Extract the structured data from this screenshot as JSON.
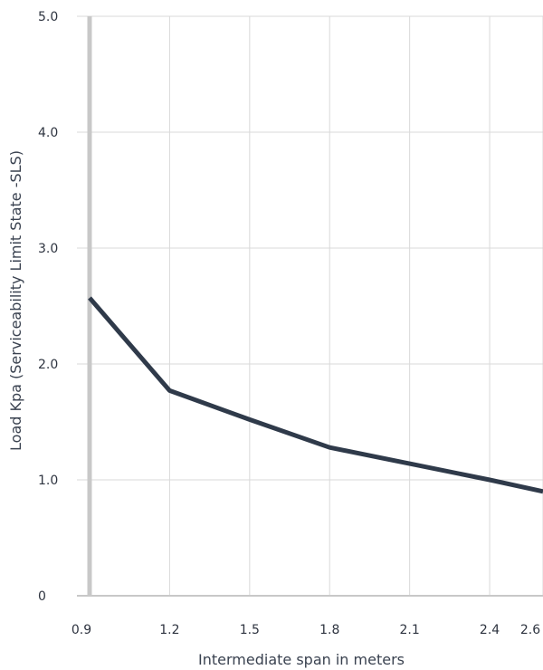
{
  "chart_data": {
    "type": "line",
    "title": "",
    "xlabel": "Intermediate span in meters",
    "ylabel": "Load Kpa  (Serviceability Limit State -SLS)",
    "x_ticks": [
      "0.9",
      "1.2",
      "1.5",
      "1.8",
      "2.1",
      "2.4",
      "2.6"
    ],
    "y_ticks": [
      "0",
      "1.0",
      "2.0",
      "3.0",
      "4.0",
      "5.0"
    ],
    "xlim": [
      0.9,
      2.6
    ],
    "ylim": [
      0,
      5
    ],
    "grid": true,
    "series": [
      {
        "x": [
          0.9,
          1.2,
          1.5,
          1.8,
          2.1,
          2.4,
          2.6
        ],
        "y": [
          2.57,
          1.77,
          1.52,
          1.28,
          1.14,
          1.0,
          0.9
        ]
      }
    ],
    "colors": {
      "line": "#2f3a4a",
      "grid": "#d9d9d9",
      "axis": "#c8c8c8",
      "text": "#2e3440"
    }
  }
}
